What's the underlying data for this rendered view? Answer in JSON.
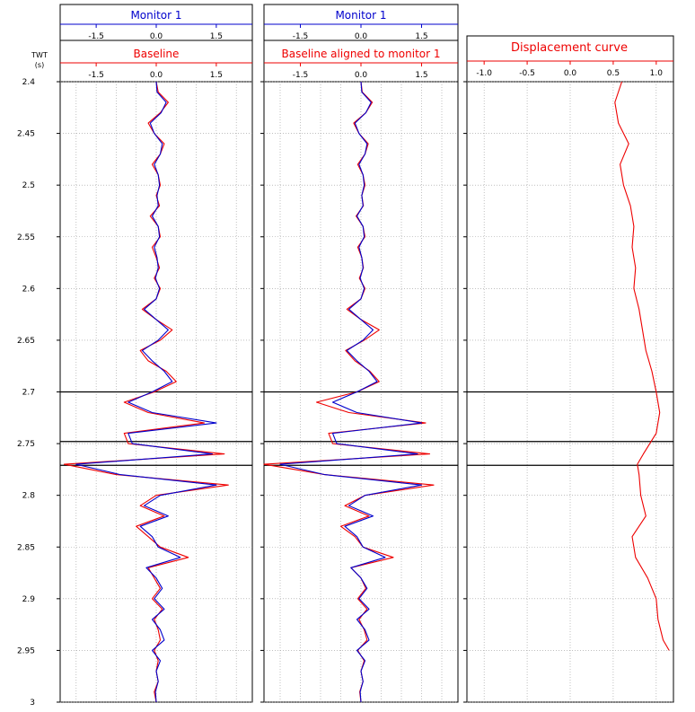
{
  "colors": {
    "monitor": "#0000cc",
    "baseline": "#ee0000",
    "axis": "#000000",
    "grid": "#999999"
  },
  "twt_axis": {
    "title_line1": "TWT",
    "title_line2": "(s)",
    "ticks": [
      "2.4",
      "2.45",
      "2.5",
      "2.55",
      "2.6",
      "2.65",
      "2.7",
      "2.75",
      "2.8",
      "2.85",
      "2.9",
      "2.95",
      "3"
    ],
    "tick_values": [
      2.4,
      2.45,
      2.5,
      2.55,
      2.6,
      2.65,
      2.7,
      2.75,
      2.8,
      2.85,
      2.9,
      2.95,
      3.0
    ],
    "range": [
      2.4,
      3.0
    ]
  },
  "horizons": [
    2.7,
    2.748,
    2.771
  ],
  "chart_data": [
    {
      "type": "line",
      "panel": "trace-baseline",
      "top_header": "Monitor 1",
      "top_ticks": [
        "-1.5",
        "0.0",
        "1.5"
      ],
      "top_tick_values": [
        -1.5,
        0.0,
        1.5
      ],
      "title": "Baseline",
      "bottom_ticks": [
        "-1.5",
        "0.0",
        "1.5"
      ],
      "bottom_tick_values": [
        -1.5,
        0.0,
        1.5
      ],
      "xlim": [
        -2.4,
        2.4
      ],
      "ylim": [
        2.4,
        3.0
      ],
      "series": [
        {
          "color_key": "baseline",
          "y": [
            2.4,
            2.41,
            2.42,
            2.43,
            2.44,
            2.45,
            2.46,
            2.47,
            2.48,
            2.49,
            2.5,
            2.51,
            2.52,
            2.53,
            2.54,
            2.55,
            2.56,
            2.57,
            2.58,
            2.59,
            2.6,
            2.61,
            2.62,
            2.63,
            2.64,
            2.65,
            2.66,
            2.67,
            2.68,
            2.69,
            2.7,
            2.71,
            2.72,
            2.73,
            2.74,
            2.75,
            2.76,
            2.77,
            2.78,
            2.79,
            2.8,
            2.81,
            2.82,
            2.83,
            2.84,
            2.85,
            2.86,
            2.87,
            2.88,
            2.89,
            2.9,
            2.91,
            2.92,
            2.93,
            2.94,
            2.95,
            2.96,
            2.97,
            2.98,
            2.99,
            3.0
          ],
          "x": [
            0.0,
            0.05,
            0.3,
            0.1,
            -0.2,
            -0.05,
            0.2,
            0.1,
            -0.1,
            0.05,
            0.1,
            0.0,
            0.08,
            -0.15,
            0.05,
            0.1,
            -0.1,
            0.0,
            0.08,
            -0.05,
            0.1,
            0.0,
            -0.35,
            0.0,
            0.4,
            0.1,
            -0.4,
            -0.2,
            0.25,
            0.5,
            -0.05,
            -0.8,
            -0.2,
            1.2,
            -0.8,
            -0.7,
            1.7,
            -2.3,
            -1.0,
            1.8,
            0.0,
            -0.4,
            0.2,
            -0.5,
            -0.2,
            0.1,
            0.8,
            -0.2,
            -0.05,
            0.1,
            -0.1,
            0.15,
            -0.05,
            0.05,
            0.1,
            -0.05,
            0.05,
            0.0,
            0.05,
            -0.05,
            0.0
          ]
        },
        {
          "color_key": "monitor",
          "y": [
            2.4,
            2.41,
            2.42,
            2.43,
            2.44,
            2.45,
            2.46,
            2.47,
            2.48,
            2.49,
            2.5,
            2.51,
            2.52,
            2.53,
            2.54,
            2.55,
            2.56,
            2.57,
            2.58,
            2.59,
            2.6,
            2.61,
            2.62,
            2.63,
            2.64,
            2.65,
            2.66,
            2.67,
            2.68,
            2.69,
            2.7,
            2.71,
            2.72,
            2.73,
            2.74,
            2.75,
            2.76,
            2.77,
            2.78,
            2.79,
            2.8,
            2.81,
            2.82,
            2.83,
            2.84,
            2.85,
            2.86,
            2.87,
            2.88,
            2.89,
            2.9,
            2.91,
            2.92,
            2.93,
            2.94,
            2.95,
            2.96,
            2.97,
            2.98,
            2.99,
            3.0
          ],
          "x": [
            0.0,
            0.02,
            0.25,
            0.12,
            -0.15,
            -0.05,
            0.15,
            0.1,
            -0.05,
            0.05,
            0.08,
            0.02,
            0.05,
            -0.1,
            0.05,
            0.08,
            -0.05,
            0.02,
            0.05,
            -0.02,
            0.08,
            0.0,
            -0.3,
            0.0,
            0.3,
            0.05,
            -0.35,
            -0.1,
            0.2,
            0.4,
            -0.1,
            -0.7,
            -0.1,
            1.5,
            -0.7,
            -0.6,
            1.4,
            -2.0,
            -0.9,
            1.5,
            0.1,
            -0.3,
            0.3,
            -0.4,
            -0.1,
            0.05,
            0.6,
            -0.25,
            0.0,
            0.15,
            -0.05,
            0.2,
            -0.1,
            0.1,
            0.2,
            -0.1,
            0.1,
            0.0,
            0.05,
            -0.02,
            0.0
          ]
        }
      ]
    },
    {
      "type": "line",
      "panel": "trace-aligned",
      "top_header": "Monitor 1",
      "top_ticks": [
        "-1.5",
        "0.0",
        "1.5"
      ],
      "top_tick_values": [
        -1.5,
        0.0,
        1.5
      ],
      "title": "Baseline aligned to monitor 1",
      "bottom_ticks": [
        "-1.5",
        "0.0",
        "1.5"
      ],
      "bottom_tick_values": [
        -1.5,
        0.0,
        1.5
      ],
      "xlim": [
        -2.4,
        2.4
      ],
      "ylim": [
        2.4,
        3.0
      ],
      "series": [
        {
          "color_key": "baseline",
          "y": [
            2.4,
            2.41,
            2.42,
            2.43,
            2.44,
            2.45,
            2.46,
            2.47,
            2.48,
            2.49,
            2.5,
            2.51,
            2.52,
            2.53,
            2.54,
            2.55,
            2.56,
            2.57,
            2.58,
            2.59,
            2.6,
            2.61,
            2.62,
            2.63,
            2.64,
            2.65,
            2.66,
            2.67,
            2.68,
            2.69,
            2.7,
            2.71,
            2.72,
            2.73,
            2.74,
            2.75,
            2.76,
            2.77,
            2.78,
            2.79,
            2.8,
            2.81,
            2.82,
            2.83,
            2.84,
            2.85,
            2.86,
            2.87,
            2.88,
            2.89,
            2.9,
            2.91,
            2.92,
            2.93,
            2.94,
            2.95,
            2.96,
            2.97,
            2.98,
            2.99,
            3.0
          ],
          "x": [
            0.0,
            0.03,
            0.28,
            0.12,
            -0.18,
            -0.05,
            0.18,
            0.1,
            -0.08,
            0.05,
            0.1,
            0.02,
            0.06,
            -0.12,
            0.05,
            0.1,
            -0.08,
            0.02,
            0.06,
            -0.04,
            0.1,
            0.0,
            -0.35,
            0.0,
            0.45,
            0.08,
            -0.38,
            -0.15,
            0.22,
            0.45,
            -0.1,
            -1.1,
            -0.3,
            1.6,
            -0.8,
            -0.7,
            1.7,
            -2.4,
            -0.9,
            1.8,
            0.1,
            -0.4,
            0.2,
            -0.5,
            -0.15,
            0.05,
            0.8,
            -0.25,
            0.0,
            0.12,
            -0.08,
            0.15,
            -0.05,
            0.08,
            0.15,
            -0.08,
            0.08,
            0.0,
            0.05,
            -0.03,
            0.0
          ]
        },
        {
          "color_key": "monitor",
          "y": [
            2.4,
            2.41,
            2.42,
            2.43,
            2.44,
            2.45,
            2.46,
            2.47,
            2.48,
            2.49,
            2.5,
            2.51,
            2.52,
            2.53,
            2.54,
            2.55,
            2.56,
            2.57,
            2.58,
            2.59,
            2.6,
            2.61,
            2.62,
            2.63,
            2.64,
            2.65,
            2.66,
            2.67,
            2.68,
            2.69,
            2.7,
            2.71,
            2.72,
            2.73,
            2.74,
            2.75,
            2.76,
            2.77,
            2.78,
            2.79,
            2.8,
            2.81,
            2.82,
            2.83,
            2.84,
            2.85,
            2.86,
            2.87,
            2.88,
            2.89,
            2.9,
            2.91,
            2.92,
            2.93,
            2.94,
            2.95,
            2.96,
            2.97,
            2.98,
            2.99,
            3.0
          ],
          "x": [
            0.0,
            0.02,
            0.25,
            0.12,
            -0.15,
            -0.05,
            0.15,
            0.1,
            -0.05,
            0.05,
            0.08,
            0.02,
            0.05,
            -0.1,
            0.05,
            0.08,
            -0.05,
            0.02,
            0.05,
            -0.02,
            0.08,
            0.0,
            -0.3,
            0.0,
            0.3,
            0.05,
            -0.35,
            -0.1,
            0.2,
            0.4,
            -0.1,
            -0.7,
            -0.1,
            1.5,
            -0.7,
            -0.6,
            1.4,
            -2.0,
            -0.9,
            1.5,
            0.1,
            -0.3,
            0.3,
            -0.4,
            -0.1,
            0.05,
            0.6,
            -0.25,
            0.0,
            0.15,
            -0.05,
            0.2,
            -0.1,
            0.1,
            0.2,
            -0.1,
            0.1,
            0.0,
            0.05,
            -0.02,
            0.0
          ]
        }
      ]
    },
    {
      "type": "line",
      "panel": "displacement",
      "title": "Displacement curve",
      "bottom_ticks": [
        "-1.0",
        "-0.5",
        "0.0",
        "0.5",
        "1.0"
      ],
      "bottom_tick_values": [
        -1.0,
        -0.5,
        0.0,
        0.5,
        1.0
      ],
      "xlim": [
        -1.2,
        1.2
      ],
      "ylim": [
        2.4,
        3.0
      ],
      "series": [
        {
          "color_key": "baseline",
          "y": [
            2.4,
            2.42,
            2.44,
            2.46,
            2.48,
            2.5,
            2.52,
            2.54,
            2.56,
            2.58,
            2.6,
            2.62,
            2.64,
            2.66,
            2.68,
            2.7,
            2.72,
            2.74,
            2.76,
            2.77,
            2.78,
            2.8,
            2.82,
            2.84,
            2.86,
            2.88,
            2.9,
            2.92,
            2.94,
            2.95
          ],
          "x": [
            0.6,
            0.52,
            0.56,
            0.68,
            0.58,
            0.62,
            0.7,
            0.74,
            0.72,
            0.76,
            0.74,
            0.8,
            0.84,
            0.88,
            0.95,
            1.0,
            1.04,
            1.0,
            0.85,
            0.78,
            0.8,
            0.82,
            0.88,
            0.72,
            0.76,
            0.9,
            1.0,
            1.02,
            1.08,
            1.15
          ]
        }
      ]
    }
  ]
}
